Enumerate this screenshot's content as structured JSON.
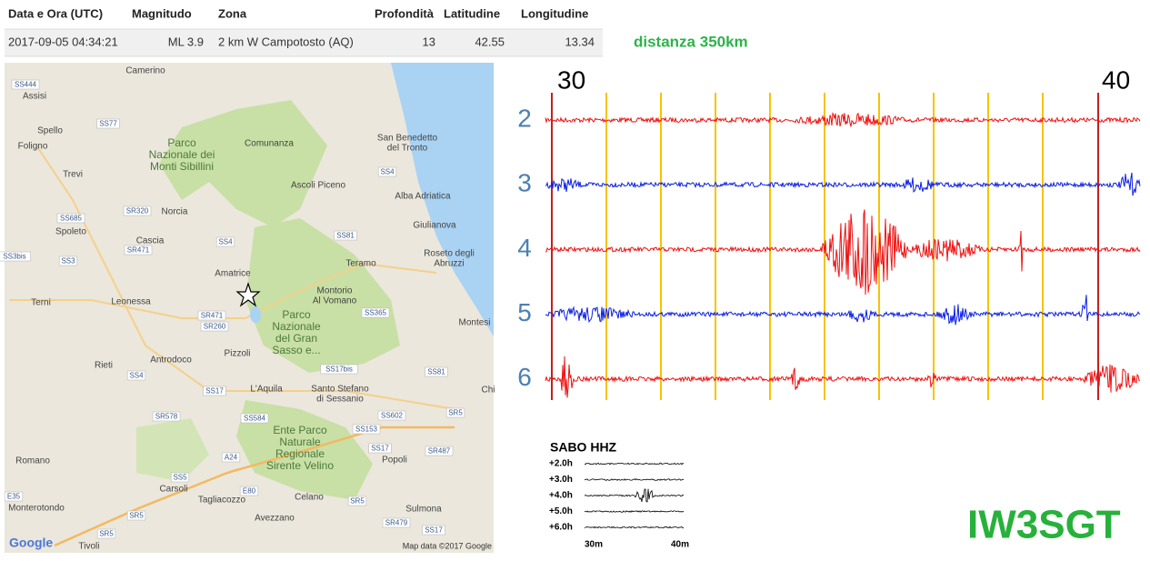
{
  "table": {
    "headers": [
      "Data e Ora (UTC)",
      "Magnitudo",
      "Zona",
      "Profondità",
      "Latitudine",
      "Longitudine"
    ],
    "rows": [
      [
        "2017-09-05 04:34:21",
        "ML 3.9",
        "2 km W Campotosto (AQ)",
        "13",
        "42.55",
        "13.34"
      ]
    ]
  },
  "distance": "distanza 350km",
  "map": {
    "places": [
      [
        "Camerino"
      ],
      [
        "Assisi"
      ],
      [
        "Spello"
      ],
      [
        "Foligno"
      ],
      [
        "Parco",
        "Nazionale dei",
        "Monti Sibillini"
      ],
      [
        "Comunanza"
      ],
      [
        "San Benedetto",
        "del Tronto"
      ],
      [
        "Trevi"
      ],
      [
        "Ascoli Piceno"
      ],
      [
        "Alba Adriatica"
      ],
      [
        "Norcia"
      ],
      [
        "Giulianova"
      ],
      [
        "Spoleto"
      ],
      [
        "Cascia"
      ],
      [
        "Roseto degli",
        "Abruzzi"
      ],
      [
        "Teramo"
      ],
      [
        "Amatrice"
      ],
      [
        "Terni"
      ],
      [
        "Leonessa"
      ],
      [
        "Montorio",
        "Al Vomano"
      ],
      [
        "Parco",
        "Nazionale",
        "del Gran",
        "Sasso e..."
      ],
      [
        "Montesi"
      ],
      [
        "Pizzoli"
      ],
      [
        "Rieti"
      ],
      [
        "Antrodoco"
      ],
      [
        "L'Aquila"
      ],
      [
        "Santo Stefano",
        "di Sessanio"
      ],
      [
        "Chi"
      ],
      [
        "Ente Parco",
        "Naturale",
        "Regionale",
        "Sirente Velino"
      ],
      [
        "Popoli"
      ],
      [
        "Romano"
      ],
      [
        "Carsoli"
      ],
      [
        "Tagliacozzo"
      ],
      [
        "Celano"
      ],
      [
        "Sulmona"
      ],
      [
        "Monterotondo"
      ],
      [
        "Avezzano"
      ],
      [
        "Tivoli"
      ]
    ],
    "roads": [
      "SS444",
      "SS77",
      "SS685",
      "SS3bis",
      "SS3",
      "SR320",
      "SR471",
      "SS4",
      "SS81",
      "SS4",
      "SR471",
      "SR260",
      "SS365",
      "SS17bis",
      "SS81",
      "SS4",
      "SS17",
      "SR578",
      "SS584",
      "SS602",
      "SR5",
      "SS153",
      "SS17",
      "SR487",
      "A24",
      "SS5",
      "SR5",
      "E80",
      "E35",
      "SR5",
      "SR479",
      "SS17",
      "SR5"
    ],
    "attribution": "Map data ©2017 Google",
    "logo": "Google"
  },
  "seismogram": {
    "time_labels": [
      "30",
      "40"
    ],
    "rows": [
      "2",
      "3",
      "4",
      "5",
      "6"
    ]
  },
  "helicorder": {
    "title": "SABO HHZ",
    "rows": [
      "+2.0h",
      "+3.0h",
      "+4.0h",
      "+5.0h",
      "+6.0h"
    ],
    "time_labels": [
      "30m",
      "40m"
    ]
  },
  "callsign": "IW3SGT"
}
